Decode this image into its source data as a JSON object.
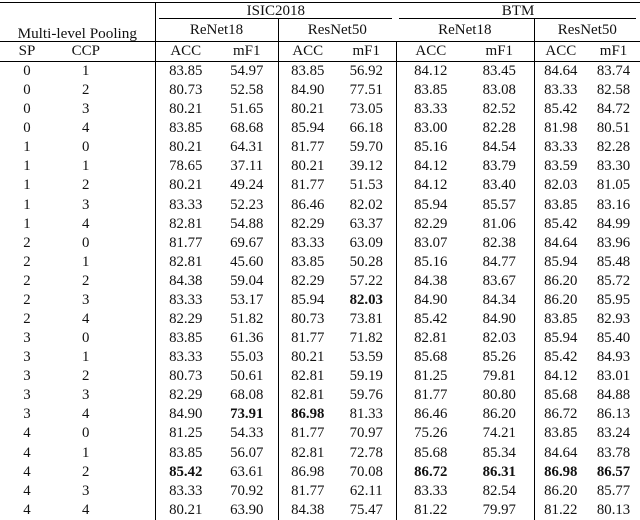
{
  "table": {
    "pooling_header": "Multi-level Pooling",
    "datasets": [
      {
        "name": "ISIC2018",
        "models": [
          "ReNet18",
          "ResNet50"
        ]
      },
      {
        "name": "BTM",
        "models": [
          "ReNet18",
          "ResNet50"
        ]
      }
    ],
    "col_headers": {
      "sp": "SP",
      "ccp": "CCP",
      "acc": "ACC",
      "mf1": "mF1"
    },
    "rows": [
      {
        "sp": "0",
        "ccp": "1",
        "values": [
          "83.85",
          "54.97",
          "83.85",
          "56.92",
          "84.12",
          "83.45",
          "84.64",
          "83.74"
        ],
        "bold": []
      },
      {
        "sp": "0",
        "ccp": "2",
        "values": [
          "80.73",
          "52.58",
          "84.90",
          "77.51",
          "83.85",
          "83.08",
          "83.33",
          "82.58"
        ],
        "bold": []
      },
      {
        "sp": "0",
        "ccp": "3",
        "values": [
          "80.21",
          "51.65",
          "80.21",
          "73.05",
          "83.33",
          "82.52",
          "85.42",
          "84.72"
        ],
        "bold": []
      },
      {
        "sp": "0",
        "ccp": "4",
        "values": [
          "83.85",
          "68.68",
          "85.94",
          "66.18",
          "83.00",
          "82.28",
          "81.98",
          "80.51"
        ],
        "bold": []
      },
      {
        "sp": "1",
        "ccp": "0",
        "values": [
          "80.21",
          "64.31",
          "81.77",
          "59.70",
          "85.16",
          "84.54",
          "83.33",
          "82.28"
        ],
        "bold": []
      },
      {
        "sp": "1",
        "ccp": "1",
        "values": [
          "78.65",
          "37.11",
          "80.21",
          "39.12",
          "84.12",
          "83.79",
          "83.59",
          "83.30"
        ],
        "bold": []
      },
      {
        "sp": "1",
        "ccp": "2",
        "values": [
          "80.21",
          "49.24",
          "81.77",
          "51.53",
          "84.12",
          "83.40",
          "82.03",
          "81.05"
        ],
        "bold": []
      },
      {
        "sp": "1",
        "ccp": "3",
        "values": [
          "83.33",
          "52.23",
          "86.46",
          "82.02",
          "85.94",
          "85.57",
          "83.85",
          "83.16"
        ],
        "bold": []
      },
      {
        "sp": "1",
        "ccp": "4",
        "values": [
          "82.81",
          "54.88",
          "82.29",
          "63.37",
          "82.29",
          "81.06",
          "85.42",
          "84.99"
        ],
        "bold": []
      },
      {
        "sp": "2",
        "ccp": "0",
        "values": [
          "81.77",
          "69.67",
          "83.33",
          "63.09",
          "83.07",
          "82.38",
          "84.64",
          "83.96"
        ],
        "bold": []
      },
      {
        "sp": "2",
        "ccp": "1",
        "values": [
          "82.81",
          "45.60",
          "83.85",
          "50.28",
          "85.16",
          "84.77",
          "85.94",
          "85.48"
        ],
        "bold": []
      },
      {
        "sp": "2",
        "ccp": "2",
        "values": [
          "84.38",
          "59.04",
          "82.29",
          "57.22",
          "84.38",
          "83.67",
          "86.20",
          "85.72"
        ],
        "bold": []
      },
      {
        "sp": "2",
        "ccp": "3",
        "values": [
          "83.33",
          "53.17",
          "85.94",
          "82.03",
          "84.90",
          "84.34",
          "86.20",
          "85.95"
        ],
        "bold": [
          3
        ]
      },
      {
        "sp": "2",
        "ccp": "4",
        "values": [
          "82.29",
          "51.82",
          "80.73",
          "73.81",
          "85.42",
          "84.90",
          "83.85",
          "82.93"
        ],
        "bold": []
      },
      {
        "sp": "3",
        "ccp": "0",
        "values": [
          "83.85",
          "61.36",
          "81.77",
          "71.82",
          "82.81",
          "82.03",
          "85.94",
          "85.40"
        ],
        "bold": []
      },
      {
        "sp": "3",
        "ccp": "1",
        "values": [
          "83.33",
          "55.03",
          "80.21",
          "53.59",
          "85.68",
          "85.26",
          "85.42",
          "84.93"
        ],
        "bold": []
      },
      {
        "sp": "3",
        "ccp": "2",
        "values": [
          "80.73",
          "50.61",
          "82.81",
          "59.19",
          "81.25",
          "79.81",
          "84.12",
          "83.01"
        ],
        "bold": []
      },
      {
        "sp": "3",
        "ccp": "3",
        "values": [
          "82.29",
          "68.08",
          "82.81",
          "59.76",
          "81.77",
          "80.80",
          "85.68",
          "84.88"
        ],
        "bold": []
      },
      {
        "sp": "3",
        "ccp": "4",
        "values": [
          "84.90",
          "73.91",
          "86.98",
          "81.33",
          "86.46",
          "86.20",
          "86.72",
          "86.13"
        ],
        "bold": [
          1,
          2
        ]
      },
      {
        "sp": "4",
        "ccp": "0",
        "values": [
          "81.25",
          "54.33",
          "81.77",
          "70.97",
          "75.26",
          "74.21",
          "83.85",
          "83.24"
        ],
        "bold": []
      },
      {
        "sp": "4",
        "ccp": "1",
        "values": [
          "83.85",
          "56.07",
          "82.81",
          "72.78",
          "85.68",
          "85.34",
          "84.64",
          "83.78"
        ],
        "bold": []
      },
      {
        "sp": "4",
        "ccp": "2",
        "values": [
          "85.42",
          "63.61",
          "86.98",
          "70.08",
          "86.72",
          "86.31",
          "86.98",
          "86.57"
        ],
        "bold": [
          0,
          4,
          5,
          6,
          7
        ]
      },
      {
        "sp": "4",
        "ccp": "3",
        "values": [
          "83.33",
          "70.92",
          "81.77",
          "62.11",
          "83.33",
          "82.54",
          "86.20",
          "85.77"
        ],
        "bold": []
      },
      {
        "sp": "4",
        "ccp": "4",
        "values": [
          "80.21",
          "63.90",
          "84.38",
          "75.47",
          "81.22",
          "79.97",
          "81.22",
          "80.13"
        ],
        "bold": []
      }
    ]
  },
  "colors": {
    "text": "#111111",
    "rule": "#000000",
    "background": "#ffffff"
  }
}
